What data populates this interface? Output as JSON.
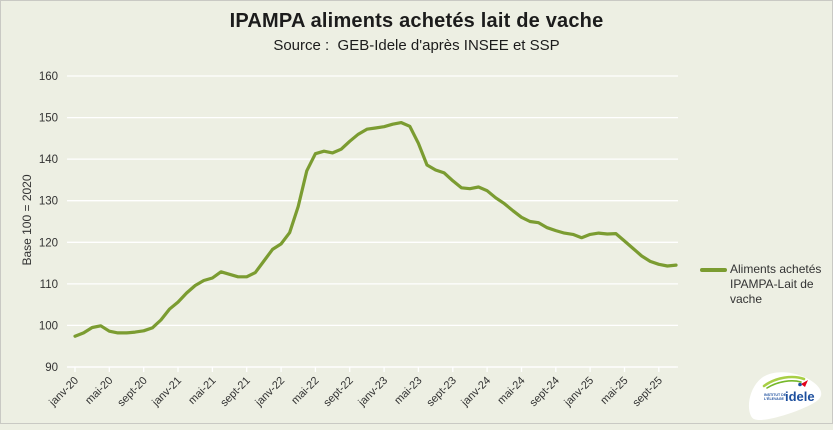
{
  "title": "IPAMPA aliments achetés lait de vache",
  "subtitle": "Source :  GEB-Idele d'après INSEE et SSP",
  "colors": {
    "background": "#edefe3",
    "line": "#7b9c31",
    "grid": "#ffffff",
    "axis_text": "#333333",
    "logo_green": "#76b82a",
    "logo_blue": "#1d4f9e",
    "logo_red": "#e2001a"
  },
  "y_axis": {
    "title": "Base 100 = 2020"
  },
  "legend": {
    "lines": [
      "Aliments achetés",
      "IPAMPA-Lait de",
      "vache"
    ]
  },
  "logo": {
    "wordmark": "idele",
    "caption_line1": "INSTITUT DE",
    "caption_line2": "L'ÉLEVAGE"
  },
  "chart_data": {
    "type": "line",
    "title": "IPAMPA aliments achetés lait de vache",
    "subtitle": "Source :  GEB-Idele d'après INSEE et SSP",
    "xlabel": "",
    "ylabel": "Base 100 = 2020",
    "ylim": [
      90,
      160
    ],
    "y_ticks": [
      90,
      100,
      110,
      120,
      130,
      140,
      150,
      160
    ],
    "grid": true,
    "legend_position": "right",
    "x_tick_every": 4,
    "x": [
      "janv-20",
      "févr-20",
      "mars-20",
      "avr-20",
      "mai-20",
      "juin-20",
      "juil-20",
      "août-20",
      "sept-20",
      "oct-20",
      "nov-20",
      "déc-20",
      "janv-21",
      "févr-21",
      "mars-21",
      "avr-21",
      "mai-21",
      "juin-21",
      "juil-21",
      "août-21",
      "sept-21",
      "oct-21",
      "nov-21",
      "déc-21",
      "janv-22",
      "févr-22",
      "mars-22",
      "avr-22",
      "mai-22",
      "juin-22",
      "juil-22",
      "août-22",
      "sept-22",
      "oct-22",
      "nov-22",
      "déc-22",
      "janv-23",
      "févr-23",
      "mars-23",
      "avr-23",
      "mai-23",
      "juin-23",
      "juil-23",
      "août-23",
      "sept-23",
      "oct-23",
      "nov-23",
      "déc-23",
      "janv-24",
      "févr-24",
      "mars-24",
      "avr-24",
      "mai-24",
      "juin-24",
      "juil-24",
      "août-24",
      "sept-24",
      "oct-24",
      "nov-24",
      "déc-24",
      "janv-25",
      "févr-25",
      "mars-25",
      "avr-25",
      "mai-25",
      "juin-25",
      "juil-25",
      "août-25",
      "sept-25",
      "oct-25",
      "nov-25"
    ],
    "series": [
      {
        "name": "Aliments achetés IPAMPA-Lait de vache",
        "color": "#7b9c31",
        "values": [
          97.4,
          98.2,
          99.5,
          99.9,
          98.6,
          98.2,
          98.2,
          98.4,
          98.7,
          99.4,
          101.3,
          103.9,
          105.6,
          107.8,
          109.6,
          110.8,
          111.4,
          112.9,
          112.3,
          111.7,
          111.7,
          112.7,
          115.5,
          118.3,
          119.6,
          122.3,
          128.6,
          137.2,
          141.3,
          141.9,
          141.5,
          142.4,
          144.3,
          146.0,
          147.2,
          147.5,
          147.8,
          148.4,
          148.8,
          147.9,
          143.8,
          138.6,
          137.4,
          136.7,
          134.8,
          133.1,
          132.9,
          133.3,
          132.4,
          130.7,
          129.3,
          127.6,
          126.0,
          125.0,
          124.7,
          123.5,
          122.8,
          122.2,
          121.9,
          121.1,
          121.9,
          122.2,
          122.0,
          122.1,
          120.3,
          118.5,
          116.7,
          115.4,
          114.7,
          114.3,
          114.5
        ]
      }
    ]
  }
}
